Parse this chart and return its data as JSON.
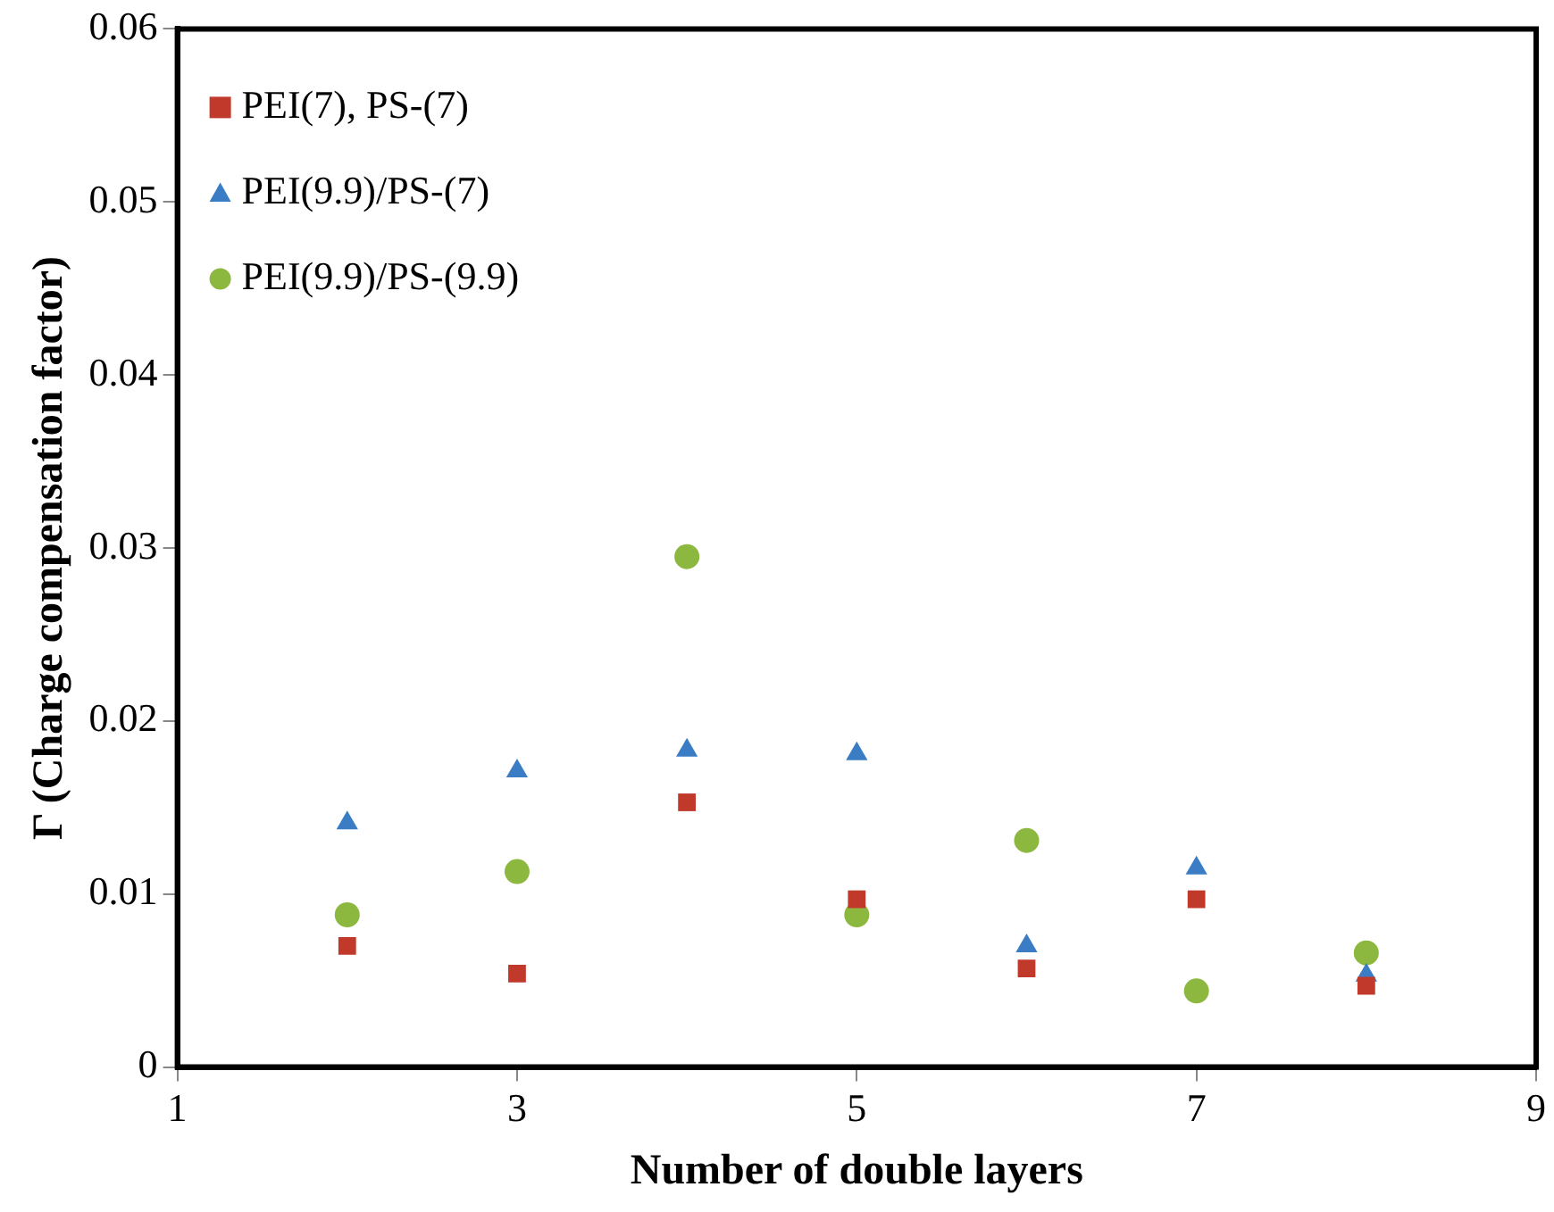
{
  "chart_data": {
    "type": "scatter",
    "xlabel": "Number of double layers",
    "ylabel": "Γ (Charge compensation factor)",
    "xlim": [
      1,
      9
    ],
    "xticks": [
      1,
      3,
      5,
      7,
      9
    ],
    "ylim": [
      0,
      0.06
    ],
    "yticks": [
      0,
      0.01,
      0.02,
      0.03,
      0.04,
      0.05,
      0.06
    ],
    "grid": false,
    "legend": "top left",
    "x": [
      2,
      3,
      4,
      5,
      6,
      7,
      8
    ],
    "series": [
      {
        "name": "PEI(7), PS-(7)",
        "color": "#c0392b",
        "marker": "square",
        "values": [
          0.007,
          0.0054,
          0.0153,
          0.0097,
          0.0057,
          0.0097,
          0.0047
        ]
      },
      {
        "name": "PEI(9.9)/PS-(7)",
        "color": "#3a7dc4",
        "marker": "triangle",
        "values": [
          0.0141,
          0.0171,
          0.0183,
          0.0181,
          0.007,
          0.0115,
          0.0053
        ]
      },
      {
        "name": "PEI(9.9)/PS-(9.9)",
        "color": "#8db83f",
        "marker": "circle",
        "values": [
          0.0088,
          0.0113,
          0.0295,
          0.0088,
          0.0131,
          0.0044,
          0.0066
        ]
      }
    ]
  }
}
